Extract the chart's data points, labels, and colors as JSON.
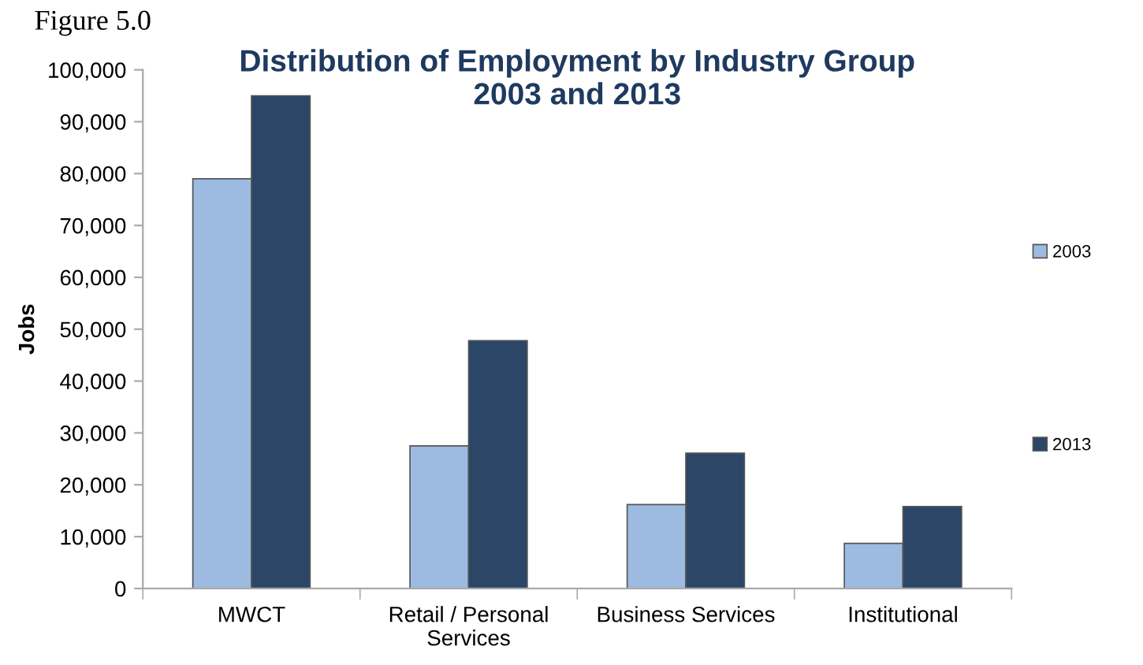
{
  "chart_data": {
    "type": "bar",
    "title": "Distribution of Employment by Industry Group\n2003 and 2013",
    "ylabel": "Jobs",
    "annotations": [
      "Figure 5.0"
    ],
    "categories": [
      "MWCT",
      "Retail / Personal\nServices",
      "Business Services",
      "Institutional"
    ],
    "series": [
      {
        "name": "2003",
        "color": "#9dbbe0",
        "values": [
          79000,
          27500,
          16200,
          8700
        ]
      },
      {
        "name": "2013",
        "color": "#2b4667",
        "values": [
          95000,
          47800,
          26100,
          15800
        ]
      }
    ],
    "ylim": [
      0,
      100000
    ],
    "yticks": [
      {
        "value": 0,
        "label": "0"
      },
      {
        "value": 10000,
        "label": "10,000"
      },
      {
        "value": 20000,
        "label": "20,000"
      },
      {
        "value": 30000,
        "label": "30,000"
      },
      {
        "value": 40000,
        "label": "40,000"
      },
      {
        "value": 50000,
        "label": "50,000"
      },
      {
        "value": 60000,
        "label": "60,000"
      },
      {
        "value": 70000,
        "label": "70,000"
      },
      {
        "value": 80000,
        "label": "80,000"
      },
      {
        "value": 90000,
        "label": "90,000"
      },
      {
        "value": 100000,
        "label": "100,000"
      }
    ],
    "grid": false,
    "legend": "right"
  }
}
